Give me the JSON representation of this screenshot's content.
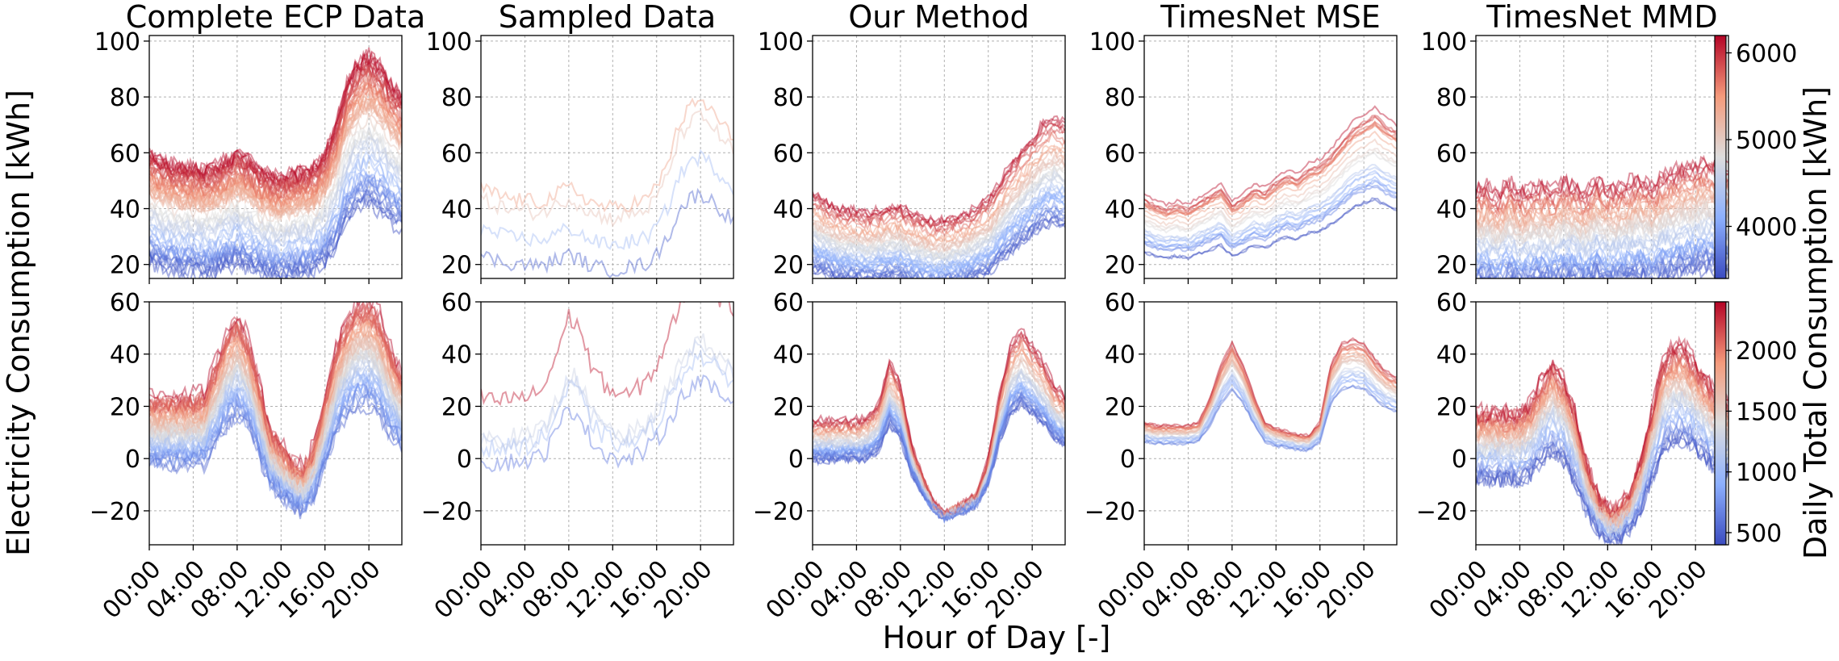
{
  "figure": {
    "xlabel": "Hour of Day [-]",
    "ylabel": "Electricity Consumption [kWh]",
    "colorbar_label": "Daily Total Consumption [kWh]",
    "colormap": "coolwarm",
    "colormap_colors": [
      "#3b4cc0",
      "#8db0fe",
      "#dddddd",
      "#f49a7b",
      "#b40426"
    ],
    "grid": true
  },
  "chart_data": [
    {
      "type": "line",
      "title": "Complete ECP Data",
      "x_tick_labels": [
        "00:00",
        "04:00",
        "08:00",
        "12:00",
        "16:00",
        "20:00"
      ],
      "x_range": [
        0,
        23
      ],
      "ylim": [
        15,
        102
      ],
      "y_ticks": [
        20,
        40,
        60,
        80,
        100
      ],
      "profile": [
        40,
        38,
        37,
        36,
        36,
        35,
        36,
        38,
        40,
        38,
        35,
        34,
        33,
        34,
        35,
        36,
        40,
        48,
        60,
        66,
        68,
        65,
        60,
        56
      ],
      "profile_spread": 10,
      "line_count": 60,
      "color_range": [
        3400,
        6200
      ]
    },
    {
      "type": "line",
      "title": "Sampled Data",
      "x_tick_labels": [
        "00:00",
        "04:00",
        "08:00",
        "12:00",
        "16:00",
        "20:00"
      ],
      "x_range": [
        0,
        23
      ],
      "ylim": [
        15,
        102
      ],
      "y_ticks": [
        20,
        40,
        60,
        80,
        100
      ],
      "profile": [
        40,
        38,
        37,
        36,
        36,
        35,
        36,
        38,
        40,
        38,
        35,
        34,
        33,
        34,
        35,
        36,
        40,
        48,
        60,
        66,
        68,
        65,
        60,
        56
      ],
      "profile_spread": 9,
      "line_count": 4,
      "color_range": [
        3400,
        6200
      ]
    },
    {
      "type": "line",
      "title": "Our Method",
      "x_tick_labels": [
        "00:00",
        "04:00",
        "08:00",
        "12:00",
        "16:00",
        "20:00"
      ],
      "x_range": [
        0,
        23
      ],
      "ylim": [
        15,
        102
      ],
      "y_ticks": [
        20,
        40,
        60,
        80,
        100
      ],
      "profile": [
        32,
        30,
        28,
        27,
        27,
        26,
        27,
        28,
        28,
        26,
        25,
        24,
        24,
        25,
        26,
        28,
        30,
        35,
        40,
        44,
        48,
        52,
        54,
        52
      ],
      "profile_spread": 6,
      "line_count": 45,
      "color_range": [
        3400,
        6200
      ]
    },
    {
      "type": "line",
      "title": "TimesNet MSE",
      "x_tick_labels": [
        "00:00",
        "04:00",
        "08:00",
        "12:00",
        "16:00",
        "20:00"
      ],
      "x_range": [
        0,
        23
      ],
      "ylim": [
        15,
        102
      ],
      "y_ticks": [
        20,
        40,
        60,
        80,
        100
      ],
      "profile": [
        35,
        33,
        32,
        33,
        32,
        34,
        36,
        38,
        33,
        35,
        38,
        37,
        40,
        42,
        41,
        44,
        45,
        48,
        52,
        56,
        58,
        60,
        57,
        55
      ],
      "profile_spread": 2,
      "line_count": 25,
      "color_range": [
        3400,
        6200
      ]
    },
    {
      "type": "line",
      "title": "TimesNet MMD",
      "x_tick_labels": [
        "00:00",
        "04:00",
        "08:00",
        "12:00",
        "16:00",
        "20:00"
      ],
      "x_range": [
        0,
        23
      ],
      "ylim": [
        15,
        102
      ],
      "y_ticks": [
        20,
        40,
        60,
        80,
        100
      ],
      "profile": [
        30,
        31,
        28,
        32,
        29,
        30,
        31,
        30,
        32,
        31,
        29,
        33,
        30,
        31,
        32,
        33,
        31,
        34,
        35,
        36,
        37,
        38,
        37,
        36
      ],
      "profile_spread": 10,
      "line_count": 45,
      "color_range": [
        3400,
        6200
      ],
      "colorbar": {
        "min": 3400,
        "max": 6200,
        "ticks": [
          4000,
          5000,
          6000
        ]
      }
    },
    {
      "type": "line",
      "x_tick_labels": [
        "00:00",
        "04:00",
        "08:00",
        "12:00",
        "16:00",
        "20:00"
      ],
      "x_range": [
        0,
        23
      ],
      "ylim": [
        -33,
        60
      ],
      "y_ticks": [
        -20,
        0,
        20,
        40,
        60
      ],
      "profile": [
        10,
        10,
        10,
        10,
        10,
        11,
        20,
        30,
        35,
        28,
        15,
        0,
        -5,
        -10,
        -12,
        -5,
        10,
        25,
        35,
        40,
        40,
        35,
        25,
        18
      ],
      "profile_spread": 12,
      "line_count": 60,
      "color_range": [
        400,
        2400
      ]
    },
    {
      "type": "line",
      "x_tick_labels": [
        "00:00",
        "04:00",
        "08:00",
        "12:00",
        "16:00",
        "20:00"
      ],
      "x_range": [
        0,
        23
      ],
      "ylim": [
        -33,
        60
      ],
      "y_ticks": [
        -20,
        0,
        20,
        40,
        60
      ],
      "profile": [
        10,
        9,
        9,
        10,
        10,
        11,
        15,
        25,
        35,
        32,
        20,
        15,
        12,
        10,
        12,
        15,
        20,
        28,
        38,
        45,
        48,
        44,
        40,
        38
      ],
      "profile_spread": 12,
      "line_count": 5,
      "color_range": [
        400,
        2400
      ]
    },
    {
      "type": "line",
      "x_tick_labels": [
        "00:00",
        "04:00",
        "08:00",
        "12:00",
        "16:00",
        "20:00"
      ],
      "x_range": [
        0,
        23
      ],
      "ylim": [
        -33,
        60
      ],
      "y_ticks": [
        -20,
        0,
        20,
        40,
        60
      ],
      "profile": [
        7,
        7,
        7,
        7,
        7,
        8,
        12,
        25,
        18,
        0,
        -10,
        -18,
        -22,
        -20,
        -18,
        -15,
        -5,
        15,
        30,
        35,
        30,
        25,
        18,
        14
      ],
      "profile_spread": 6,
      "line_count": 45,
      "color_range": [
        400,
        2400
      ]
    },
    {
      "type": "line",
      "x_tick_labels": [
        "00:00",
        "04:00",
        "08:00",
        "12:00",
        "16:00",
        "20:00"
      ],
      "x_range": [
        0,
        23
      ],
      "ylim": [
        -33,
        60
      ],
      "y_ticks": [
        -20,
        0,
        20,
        40,
        60
      ],
      "profile": [
        10,
        9,
        9,
        9,
        9,
        10,
        18,
        28,
        35,
        28,
        18,
        10,
        8,
        7,
        6,
        6,
        10,
        28,
        35,
        36,
        35,
        30,
        26,
        24
      ],
      "profile_spread": 2,
      "line_count": 25,
      "color_range": [
        400,
        2400
      ]
    },
    {
      "type": "line",
      "x_tick_labels": [
        "00:00",
        "04:00",
        "08:00",
        "12:00",
        "16:00",
        "20:00"
      ],
      "x_range": [
        0,
        23
      ],
      "ylim": [
        -33,
        60
      ],
      "y_ticks": [
        -20,
        0,
        20,
        40,
        60
      ],
      "profile": [
        5,
        5,
        5,
        5,
        5,
        8,
        15,
        20,
        15,
        5,
        -10,
        -20,
        -25,
        -25,
        -20,
        -10,
        5,
        20,
        25,
        25,
        20,
        15,
        10,
        8
      ],
      "profile_spread": 12,
      "line_count": 45,
      "color_range": [
        400,
        2400
      ],
      "colorbar": {
        "min": 400,
        "max": 2400,
        "ticks": [
          500,
          1000,
          1500,
          2000
        ]
      }
    }
  ]
}
